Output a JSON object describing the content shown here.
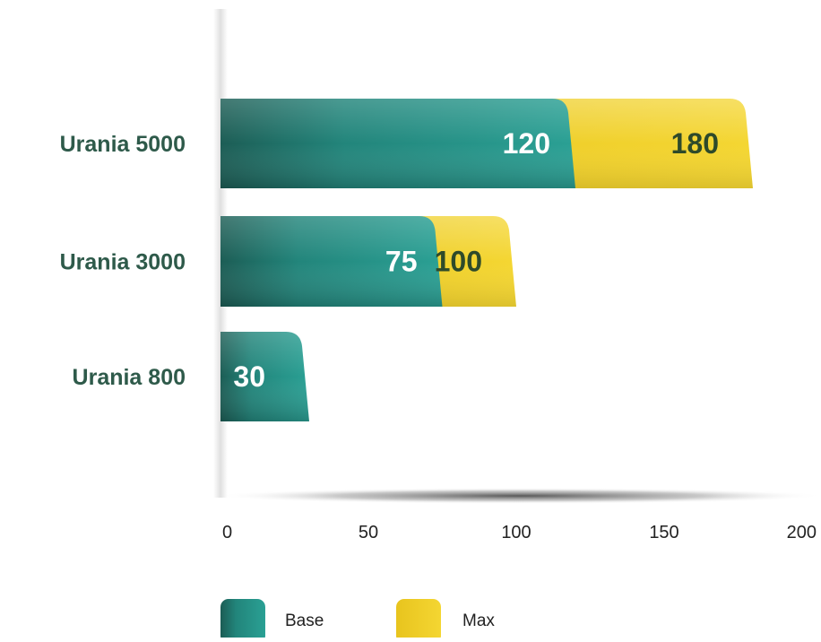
{
  "chart_data": {
    "type": "bar",
    "orientation": "horizontal",
    "stacked": false,
    "overlapping": true,
    "categories": [
      "Urania 5000",
      "Urania 3000",
      "Urania 800"
    ],
    "series": [
      {
        "name": "Base",
        "values": [
          120,
          75,
          30
        ],
        "color": "#2a9d92"
      },
      {
        "name": "Max",
        "values": [
          180,
          100,
          null
        ],
        "color": "#f2d02c"
      }
    ],
    "xlim": [
      0,
      200
    ],
    "xticks": [
      0,
      50,
      100,
      150,
      200
    ],
    "xlabel": "",
    "ylabel": "",
    "title": "",
    "grid": false,
    "legend": {
      "position": "bottom",
      "entries": [
        "Base",
        "Max"
      ]
    },
    "label_color": "#2e5a4a"
  }
}
